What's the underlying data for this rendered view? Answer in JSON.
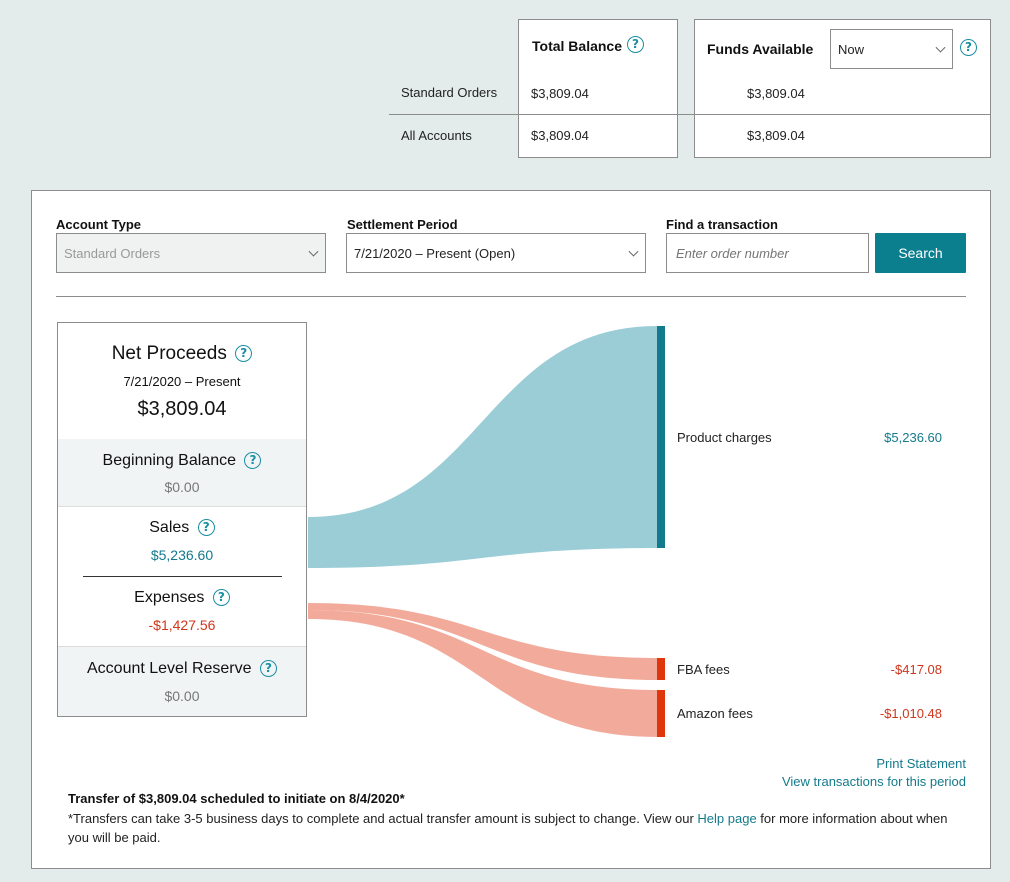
{
  "balances": {
    "total_balance_label": "Total Balance",
    "funds_available_label": "Funds Available",
    "funds_select_value": "Now",
    "rows": [
      {
        "label": "Standard Orders",
        "total": "$3,809.04",
        "funds": "$3,809.04"
      },
      {
        "label": "All Accounts",
        "total": "$3,809.04",
        "funds": "$3,809.04"
      }
    ]
  },
  "filters": {
    "account_type_label": "Account Type",
    "account_type_value": "Standard Orders",
    "settlement_label": "Settlement Period",
    "settlement_value": "7/21/2020 – Present (Open)",
    "find_label": "Find a transaction",
    "find_placeholder": "Enter order number",
    "search_button": "Search"
  },
  "summary": {
    "net_title": "Net Proceeds",
    "net_period": "7/21/2020 – Present",
    "net_value": "$3,809.04",
    "beginning_title": "Beginning Balance",
    "beginning_value": "$0.00",
    "sales_title": "Sales",
    "sales_value": "$5,236.60",
    "expenses_title": "Expenses",
    "expenses_value": "-$1,427.56",
    "reserve_title": "Account Level Reserve",
    "reserve_value": "$0.00"
  },
  "flows": [
    {
      "label": "Product charges",
      "value": "$5,236.60"
    },
    {
      "label": "FBA fees",
      "value": "-$417.08"
    },
    {
      "label": "Amazon fees",
      "value": "-$1,010.48"
    }
  ],
  "links": {
    "print": "Print Statement",
    "view": "View transactions for this period"
  },
  "transfer": {
    "headline": "Transfer of $3,809.04 scheduled to initiate on 8/4/2020*",
    "note_before": "*Transfers can take 3-5 business days to complete and actual transfer amount is subject to change. View our ",
    "note_link": "Help page",
    "note_after": " for more information about when you will be paid."
  },
  "colors": {
    "teal": "#137a8c",
    "sales_flow": "#9acdd6",
    "expense_flow": "#f2ab9b",
    "expense_bar": "#e0360c",
    "negative": "#d0361c"
  }
}
